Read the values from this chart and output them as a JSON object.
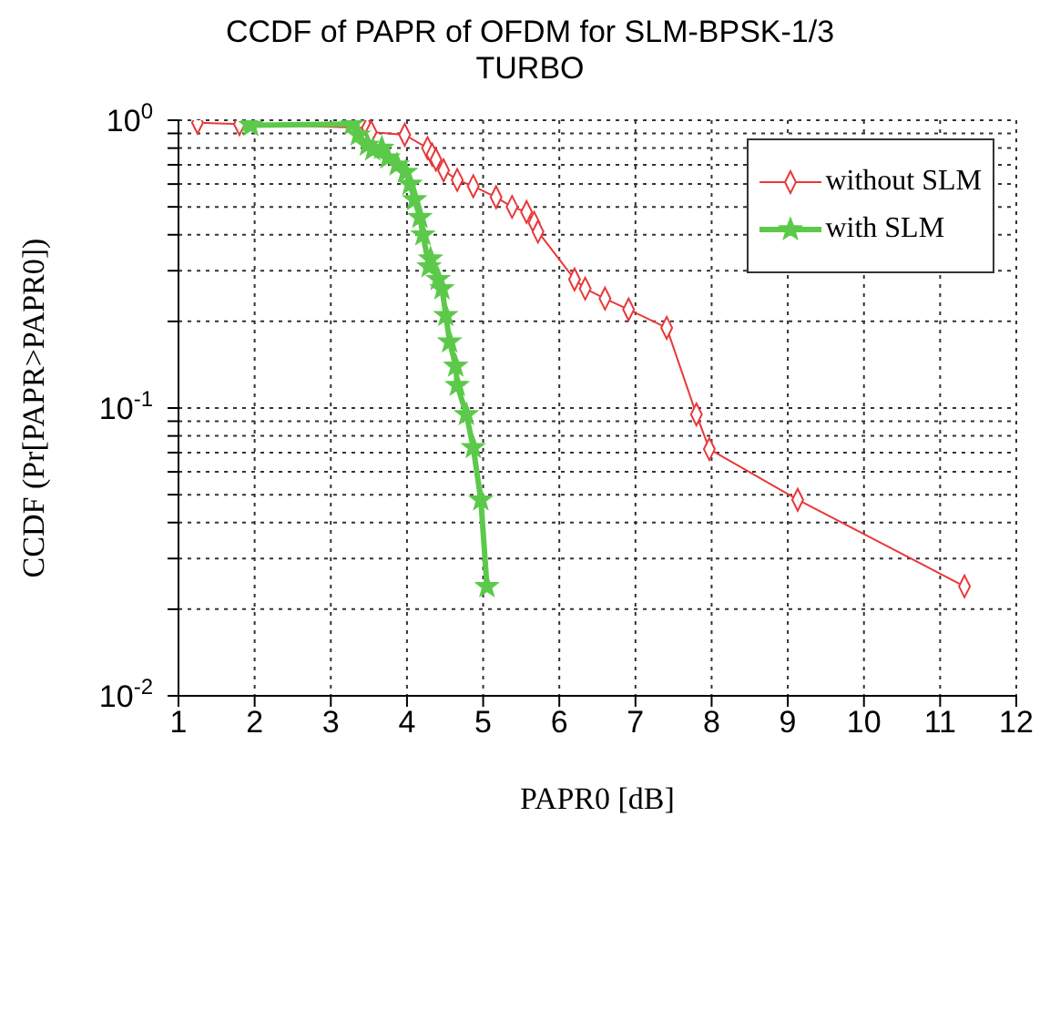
{
  "chart_data": {
    "type": "line",
    "title": "CCDF of PAPR of OFDM for SLM-BPSK-1/3 TURBO",
    "xlabel": "PAPR0 [dB]",
    "ylabel": "CCDF (Pr[PAPR>PAPR0])",
    "log": "y",
    "grid": true,
    "legend": "top right",
    "line_style": "solid",
    "xlim": [
      1,
      12
    ],
    "xticks": [
      1,
      2,
      3,
      4,
      5,
      6,
      7,
      8,
      9,
      10,
      11,
      12
    ],
    "ylim": [
      0.01,
      1
    ],
    "yticks": [
      {
        "value": 0.01,
        "label": "10$^{-2}$"
      },
      {
        "value": 0.02,
        "label": null
      },
      {
        "value": 0.03,
        "label": null
      },
      {
        "value": 0.04,
        "label": null
      },
      {
        "value": 0.05,
        "label": null
      },
      {
        "value": 0.06,
        "label": null
      },
      {
        "value": 0.07,
        "label": null
      },
      {
        "value": 0.08,
        "label": null
      },
      {
        "value": 0.09,
        "label": null
      },
      {
        "value": 0.1,
        "label": "10$^{-1}$"
      },
      {
        "value": 0.2,
        "label": null
      },
      {
        "value": 0.3,
        "label": null
      },
      {
        "value": 0.4,
        "label": null
      },
      {
        "value": 0.5,
        "label": null
      },
      {
        "value": 0.6,
        "label": null
      },
      {
        "value": 0.7,
        "label": null
      },
      {
        "value": 0.8,
        "label": null
      },
      {
        "value": 0.9,
        "label": null
      },
      {
        "value": 1,
        "label": "10$^{0}$"
      }
    ],
    "series": [
      {
        "name": "without SLM",
        "color": "#e8383a",
        "marker": "diamond",
        "x": [
          1.25,
          1.8,
          3.48,
          3.53,
          3.97,
          4.27,
          4.33,
          4.38,
          4.48,
          4.66,
          4.87,
          5.17,
          5.38,
          5.57,
          5.67,
          5.72,
          6.2,
          6.34,
          6.6,
          6.91,
          7.41,
          7.8,
          7.97,
          9.13,
          11.32
        ],
        "values": [
          0.98,
          0.97,
          0.94,
          0.91,
          0.89,
          0.8,
          0.76,
          0.73,
          0.67,
          0.62,
          0.59,
          0.54,
          0.5,
          0.48,
          0.44,
          0.41,
          0.28,
          0.26,
          0.24,
          0.22,
          0.19,
          0.095,
          0.072,
          0.048,
          0.024
        ]
      },
      {
        "name": "with SLM",
        "color": "#5cc94a",
        "marker": "star",
        "x": [
          1.93,
          1.95,
          3.28,
          3.36,
          3.48,
          3.55,
          3.67,
          3.75,
          3.87,
          3.98,
          4.04,
          4.1,
          4.17,
          4.21,
          4.29,
          4.31,
          4.41,
          4.46,
          4.51,
          4.56,
          4.64,
          4.66,
          4.78,
          4.87,
          4.97,
          5.05
        ],
        "values": [
          0.99,
          0.96,
          0.97,
          0.89,
          0.82,
          0.79,
          0.8,
          0.74,
          0.7,
          0.66,
          0.6,
          0.53,
          0.46,
          0.4,
          0.31,
          0.33,
          0.28,
          0.26,
          0.21,
          0.17,
          0.14,
          0.12,
          0.095,
          0.073,
          0.048,
          0.024
        ]
      }
    ]
  }
}
